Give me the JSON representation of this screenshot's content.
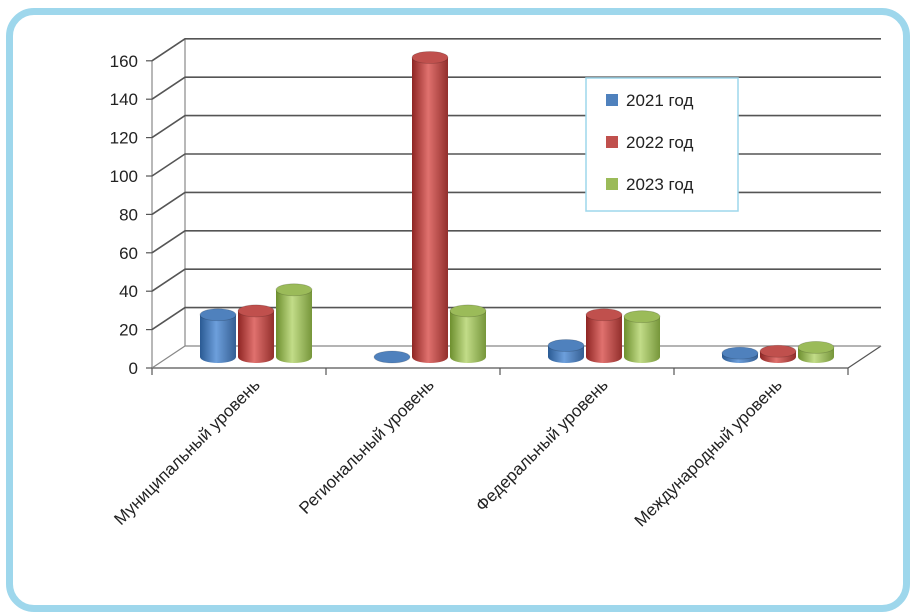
{
  "chart_data": {
    "type": "bar",
    "categories": [
      "Муниципальный уровень",
      "Региональный уровень",
      "Федеральный уровень",
      "Международный уровень"
    ],
    "series": [
      {
        "name": "2021 год",
        "values": [
          22,
          0,
          6,
          2
        ]
      },
      {
        "name": "2022 год",
        "values": [
          24,
          156,
          22,
          3
        ]
      },
      {
        "name": "2023 год",
        "values": [
          35,
          24,
          21,
          5
        ]
      }
    ],
    "ylim": [
      0,
      160
    ],
    "yticks": [
      0,
      20,
      40,
      60,
      80,
      100,
      120,
      140,
      160
    ],
    "grid": true,
    "legend": "top-right",
    "colors": [
      "#4f81bd",
      "#c0504d",
      "#9bbb59"
    ]
  }
}
